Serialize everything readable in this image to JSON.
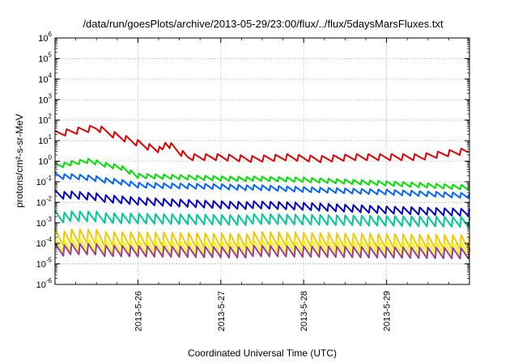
{
  "chart_data": {
    "type": "line",
    "title": "/data/run/goesPlots/archive/2013-05-29/23:00/flux/../flux/5daysMarsFluxes.txt",
    "xlabel": "Coordinated Universal Time (UTC)",
    "ylabel": "protons/cm²-s-sr-MeV",
    "yscale": "log",
    "ylim": [
      1e-06,
      1000000.0
    ],
    "xlim": [
      0,
      5
    ],
    "x_unit": "days from 2013-05-25 00:00 UTC",
    "x_ticks": [
      {
        "x": 1,
        "label": "2013-5-26"
      },
      {
        "x": 2,
        "label": "2013-5-27"
      },
      {
        "x": 3,
        "label": "2013-5-28"
      },
      {
        "x": 4,
        "label": "2013-5-29"
      }
    ],
    "y_ticks": [
      {
        "base": "10",
        "exp": "-6"
      },
      {
        "base": "10",
        "exp": "-5"
      },
      {
        "base": "10",
        "exp": "-4"
      },
      {
        "base": "10",
        "exp": "-3"
      },
      {
        "base": "10",
        "exp": "-2"
      },
      {
        "base": "10",
        "exp": "-1"
      },
      {
        "base": "10",
        "exp": "0"
      },
      {
        "base": "10",
        "exp": "1"
      },
      {
        "base": "10",
        "exp": "2"
      },
      {
        "base": "10",
        "exp": "3"
      },
      {
        "base": "10",
        "exp": "4"
      },
      {
        "base": "10",
        "exp": "5"
      },
      {
        "base": "10",
        "exp": "6"
      }
    ],
    "grid": true,
    "legend": "none",
    "series": [
      {
        "color": "#e00000",
        "style": "sawtooth",
        "approx_points_x": [
          0,
          0.5,
          1.0,
          1.3,
          1.33,
          1.6,
          2.0,
          2.4,
          2.8,
          3.2,
          3.6,
          4.0,
          4.4,
          4.8,
          5.0
        ],
        "approx_points_y": [
          20,
          40,
          8,
          3,
          8,
          1.5,
          1.5,
          1.2,
          1.5,
          1.2,
          1.5,
          1.5,
          1.5,
          2.5,
          3
        ]
      },
      {
        "color": "#00e000",
        "style": "sawtooth",
        "approx_points_x": [
          0,
          0.4,
          0.8,
          1.0,
          2.0,
          3.0,
          4.0,
          5.0
        ],
        "approx_points_y": [
          0.6,
          1.0,
          0.5,
          0.2,
          0.15,
          0.12,
          0.08,
          0.05
        ]
      },
      {
        "color": "#0064ff",
        "style": "sawtooth",
        "approx_points_x": [
          0,
          0.4,
          0.8,
          1.0,
          2.0,
          3.0,
          4.0,
          5.0
        ],
        "approx_points_y": [
          0.2,
          0.15,
          0.1,
          0.07,
          0.06,
          0.04,
          0.03,
          0.02
        ]
      },
      {
        "color": "#0000c8",
        "style": "sawtooth",
        "approx_points_x": [
          0,
          1.0,
          2.0,
          3.0,
          4.0,
          5.0
        ],
        "approx_points_y": [
          0.025,
          0.012,
          0.008,
          0.006,
          0.004,
          0.003
        ]
      },
      {
        "color": "#00c896",
        "style": "sawtooth",
        "approx_points_x": [
          0,
          5.0
        ],
        "approx_points_y": [
          0.002,
          0.001
        ]
      },
      {
        "color": "#f0c800",
        "style": "sawtooth",
        "approx_points_x": [
          0,
          5.0
        ],
        "approx_points_y": [
          0.0002,
          0.0001
        ]
      },
      {
        "color": "#f5f500",
        "style": "sawtooth",
        "approx_points_x": [
          0,
          5.0
        ],
        "approx_points_y": [
          8e-05,
          5e-05
        ]
      },
      {
        "color": "#a03c8c",
        "style": "sawtooth",
        "approx_points_x": [
          0,
          5.0
        ],
        "approx_points_y": [
          5e-05,
          3e-05
        ]
      }
    ]
  }
}
